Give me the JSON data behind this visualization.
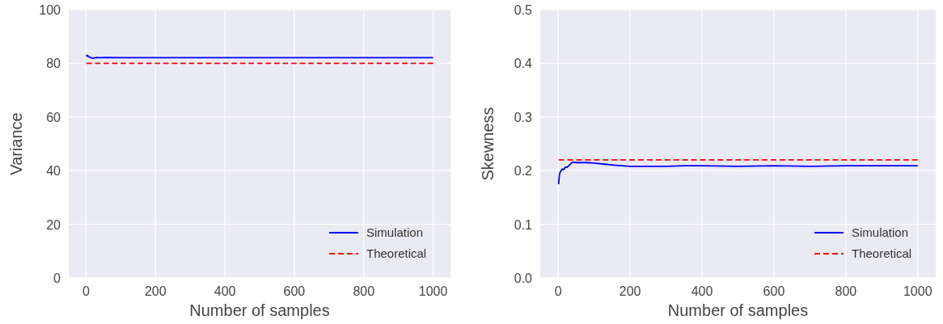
{
  "chart_data": [
    {
      "type": "line",
      "xlabel": "Number of samples",
      "ylabel": "Variance",
      "xlim": [
        -50,
        1050
      ],
      "ylim": [
        0,
        100
      ],
      "xticks": [
        0,
        200,
        400,
        600,
        800,
        1000
      ],
      "yticks": [
        0,
        20,
        40,
        60,
        80,
        100
      ],
      "grid": true,
      "legend": "bottom right",
      "series": [
        {
          "name": "Simulation",
          "color": "#0000ff",
          "line_style": "solid",
          "x": [
            1,
            3,
            5,
            8,
            12,
            16,
            20,
            25,
            30,
            40,
            60,
            100,
            200,
            400,
            600,
            800,
            1000
          ],
          "values": [
            83.2,
            82.6,
            82.9,
            82.4,
            82.3,
            82.0,
            81.9,
            82.1,
            82.2,
            82.1,
            82.2,
            82.1,
            82.1,
            82.1,
            82.1,
            82.1,
            82.1
          ]
        },
        {
          "name": "Theoretical",
          "color": "#ff0000",
          "line_style": "dashed",
          "x": [
            1,
            1000
          ],
          "values": [
            80,
            80
          ]
        }
      ]
    },
    {
      "type": "line",
      "xlabel": "Number of samples",
      "ylabel": "Skewness",
      "xlim": [
        -50,
        1050
      ],
      "ylim": [
        0,
        0.5
      ],
      "xticks": [
        0,
        200,
        400,
        600,
        800,
        1000
      ],
      "yticks": [
        {
          "value": 0,
          "label": "0.0"
        },
        0.1,
        0.2,
        0.3,
        0.4,
        0.5
      ],
      "grid": true,
      "legend": "bottom right",
      "series": [
        {
          "name": "Simulation",
          "color": "#0000ff",
          "line_style": "solid",
          "x": [
            1,
            3,
            5,
            8,
            12,
            16,
            20,
            25,
            30,
            35,
            40,
            50,
            60,
            80,
            100,
            130,
            160,
            200,
            250,
            300,
            350,
            400,
            500,
            600,
            700,
            800,
            900,
            1000
          ],
          "values": [
            0.175,
            0.19,
            0.197,
            0.2,
            0.203,
            0.202,
            0.207,
            0.206,
            0.21,
            0.213,
            0.216,
            0.215,
            0.215,
            0.215,
            0.214,
            0.212,
            0.21,
            0.208,
            0.208,
            0.208,
            0.209,
            0.209,
            0.208,
            0.209,
            0.208,
            0.209,
            0.209,
            0.209
          ]
        },
        {
          "name": "Theoretical",
          "color": "#ff0000",
          "line_style": "dashed",
          "x": [
            1,
            1000
          ],
          "values": [
            0.22,
            0.22
          ]
        }
      ]
    }
  ]
}
